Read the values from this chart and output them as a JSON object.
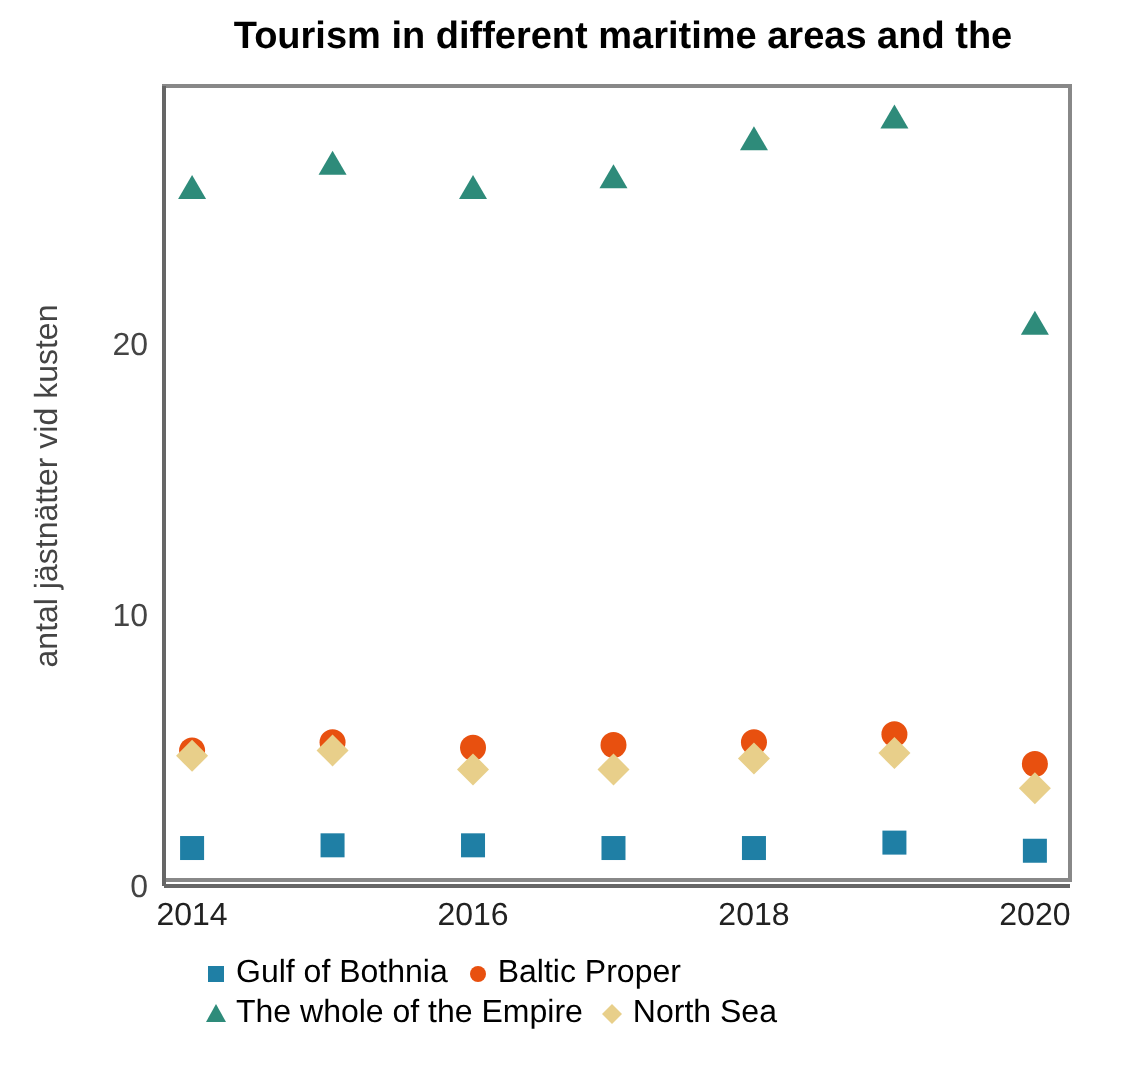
{
  "chart_data": {
    "type": "scatter",
    "title": "Tourism in different maritime areas and the",
    "ylabel": "antal jästnätter vid kusten",
    "x": [
      2014,
      2015,
      2016,
      2017,
      2018,
      2019,
      2020
    ],
    "xlim": [
      2013.8,
      2020.25
    ],
    "xticks": [
      2014,
      2016,
      2018,
      2020
    ],
    "ylim": [
      0,
      29.5
    ],
    "yticks": [
      0,
      10,
      20
    ],
    "grid": false,
    "legend": "bottom",
    "series": [
      {
        "name": "Gulf of Bothnia",
        "color": "#1f7fa5",
        "marker": "square",
        "values": [
          1.4,
          1.5,
          1.5,
          1.4,
          1.4,
          1.6,
          1.3
        ]
      },
      {
        "name": "Baltic Proper",
        "color": "#e8500f",
        "marker": "circle",
        "values": [
          5.0,
          5.3,
          5.1,
          5.2,
          5.3,
          5.6,
          4.5
        ]
      },
      {
        "name": "The whole of the Empire",
        "color": "#2e8b7a",
        "marker": "triangle",
        "values": [
          25.7,
          26.6,
          25.7,
          26.1,
          27.5,
          28.3,
          20.7
        ]
      },
      {
        "name": "North Sea",
        "color": "#e8cf8a",
        "marker": "diamond",
        "values": [
          4.8,
          5.0,
          4.3,
          4.3,
          4.7,
          4.9,
          3.6
        ]
      }
    ]
  }
}
